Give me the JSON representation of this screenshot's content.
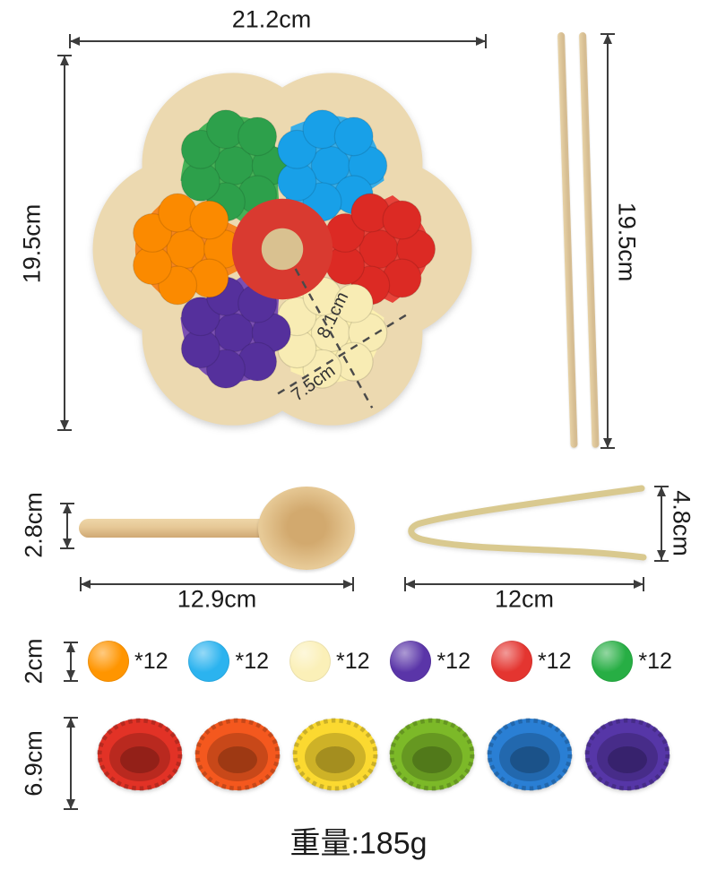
{
  "board": {
    "width_label": "21.2cm",
    "height_label": "19.5cm",
    "inner_diag1": "8.1cm",
    "inner_diag2": "7.5cm",
    "wood_color": "#ecd9b0",
    "center_color": "#d93a30",
    "petals": [
      {
        "name": "green",
        "fill": "#45b257",
        "pom": "#2da04b"
      },
      {
        "name": "blue",
        "fill": "#38aee8",
        "pom": "#18a0e8"
      },
      {
        "name": "red",
        "fill": "#e8433a",
        "pom": "#dc2a24"
      },
      {
        "name": "yellow",
        "fill": "#fcf0b0",
        "pom": "#f8ecb4"
      },
      {
        "name": "purple",
        "fill": "#7a4fb3",
        "pom": "#55309c"
      },
      {
        "name": "orange",
        "fill": "#f6861f",
        "pom": "#fb8a00"
      }
    ]
  },
  "chopsticks": {
    "length_label": "19.5cm",
    "color": "#d6bd92"
  },
  "spoon": {
    "height_label": "2.8cm",
    "length_label": "12.9cm",
    "color": "#e6c896"
  },
  "tweezers": {
    "height_label": "4.8cm",
    "length_label": "12cm",
    "color": "#d9c98f"
  },
  "pom_row": {
    "size_label": "2cm",
    "items": [
      {
        "color": "#ff9500",
        "count": "*12"
      },
      {
        "color": "#2bb3ef",
        "count": "*12"
      },
      {
        "color": "#fbf0b8",
        "count": "*12"
      },
      {
        "color": "#5a35a8",
        "count": "*12"
      },
      {
        "color": "#e43530",
        "count": "*12"
      },
      {
        "color": "#27ae44",
        "count": "*12"
      }
    ]
  },
  "cup_row": {
    "size_label": "6.9cm",
    "colors": [
      "#e23226",
      "#f4581e",
      "#fbd930",
      "#7cb928",
      "#2a7fd4",
      "#5636a7"
    ]
  },
  "weight": "重量:185g"
}
